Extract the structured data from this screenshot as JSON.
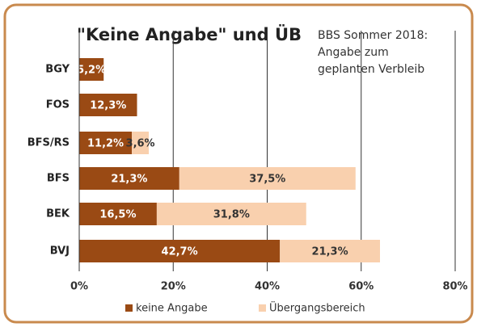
{
  "chart_data": {
    "type": "stacked-barh",
    "title": "\"Keine Angabe\" und ÜB",
    "annotation": [
      "BBS Sommer 2018:",
      "Angabe zum",
      "geplanten Verbleib"
    ],
    "categories": [
      "BGY",
      "FOS",
      "BFS/RS",
      "BFS",
      "BEK",
      "BVJ"
    ],
    "series": [
      {
        "name": "keine Angabe",
        "color": "#9a4a14",
        "values": [
          5.2,
          12.3,
          11.2,
          21.3,
          16.5,
          42.7
        ],
        "value_labels": [
          "5,2%",
          "12,3%",
          "11,2%",
          "21,3%",
          "16,5%",
          "42,7%"
        ]
      },
      {
        "name": "Übergangsbereich",
        "color": "#f9d0ae",
        "values": [
          null,
          null,
          3.6,
          37.5,
          31.8,
          21.3
        ],
        "value_labels": [
          null,
          null,
          "3,6%",
          "37,5%",
          "31,8%",
          "21,3%"
        ]
      }
    ],
    "xlim": [
      0,
      80
    ],
    "xticks": [
      {
        "value": 0,
        "label": "0%"
      },
      {
        "value": 20,
        "label": "20%"
      },
      {
        "value": 40,
        "label": "40%"
      },
      {
        "value": 60,
        "label": "60%"
      },
      {
        "value": 80,
        "label": "80%"
      }
    ],
    "grid": true,
    "legend": "bottom"
  }
}
